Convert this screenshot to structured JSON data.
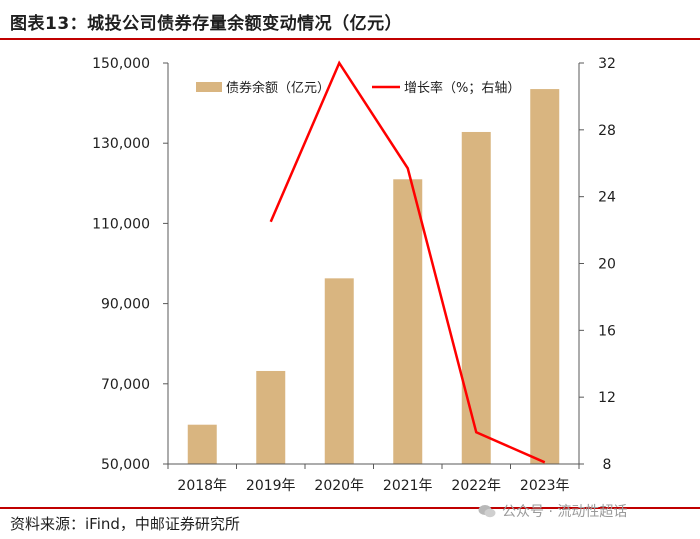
{
  "header": {
    "title": "图表13：城投公司债券存量余额变动情况（亿元）"
  },
  "footer": {
    "source": "资料来源：iFind，中邮证券研究所",
    "watermark": "公众号 · 流动性超话"
  },
  "colors": {
    "bar": "#d9b580",
    "line": "#ff0000",
    "rule": "#c00000"
  },
  "chart_data": {
    "type": "bar+line",
    "title": "城投公司债券存量余额变动情况（亿元）",
    "categories": [
      "2018年",
      "2019年",
      "2020年",
      "2021年",
      "2022年",
      "2023年"
    ],
    "series": [
      {
        "name": "债券余额（亿元）",
        "type": "bar",
        "axis": "left",
        "values": [
          59800,
          73200,
          96300,
          121000,
          132800,
          143500
        ]
      },
      {
        "name": "增长率（%；右轴）",
        "type": "line",
        "axis": "right",
        "values": [
          null,
          22.5,
          32.0,
          25.7,
          9.9,
          8.1
        ]
      }
    ],
    "y_left": {
      "lim": [
        50000,
        150000
      ],
      "ticks": [
        50000,
        70000,
        90000,
        110000,
        130000,
        150000
      ],
      "tick_labels": [
        "50,000",
        "70,000",
        "90,000",
        "110,000",
        "130,000",
        "150,000"
      ]
    },
    "y_right": {
      "lim": [
        8,
        32
      ],
      "ticks": [
        8,
        12,
        16,
        20,
        24,
        28,
        32
      ],
      "tick_labels": [
        "8",
        "12",
        "16",
        "20",
        "24",
        "28",
        "32"
      ]
    },
    "legend": [
      "债券余额（亿元）",
      "增长率（%；右轴）"
    ],
    "legend_position": "top-center",
    "grid": false
  }
}
